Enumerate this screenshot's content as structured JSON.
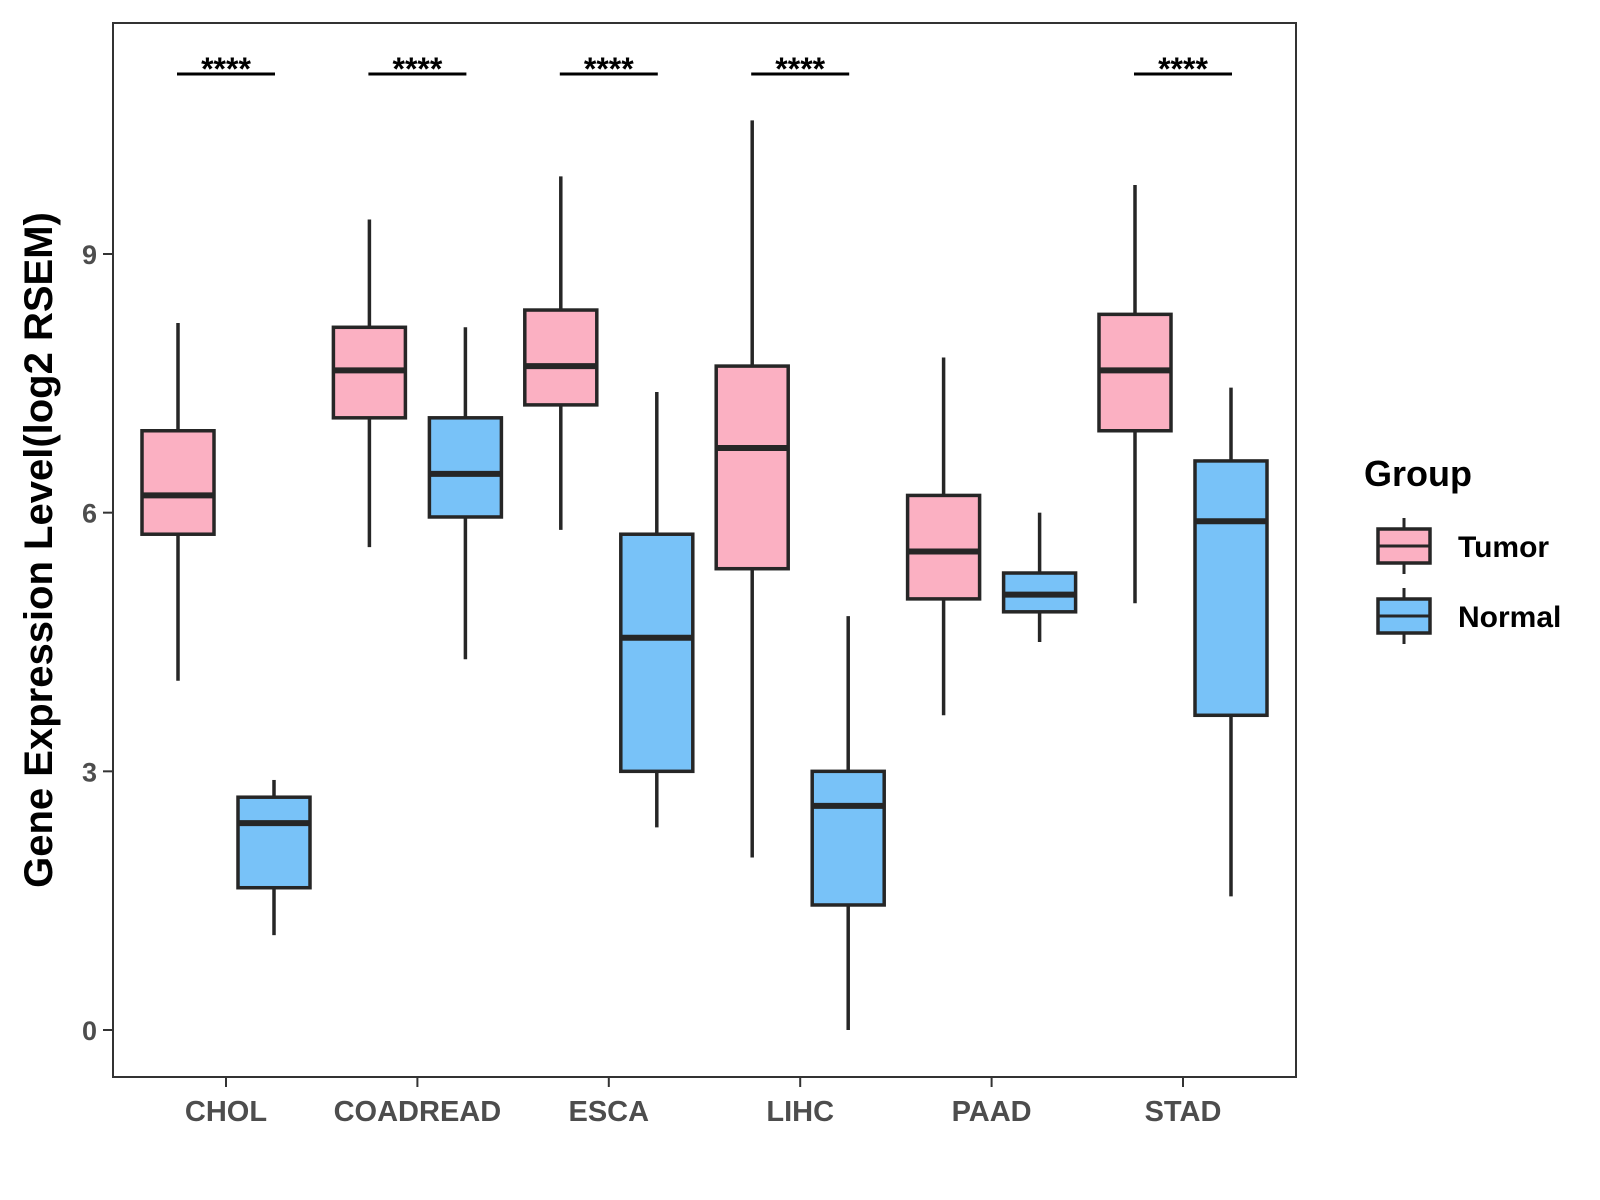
{
  "chart_data": {
    "type": "boxplot",
    "title": "",
    "xlabel": "",
    "ylabel": "Gene Expression Level(log2 RSEM)",
    "ylim": [
      -0.5,
      11.7
    ],
    "yticks": [
      0,
      3,
      6,
      9
    ],
    "grid": false,
    "legend": {
      "title": "Group",
      "placement": "right"
    },
    "categories": [
      "CHOL",
      "COADREAD",
      "ESCA",
      "LIHC",
      "PAAD",
      "STAD"
    ],
    "series": [
      {
        "name": "Tumor",
        "color": "#FBB0C2",
        "boxes": [
          {
            "min": 4.05,
            "q1": 5.75,
            "median": 6.2,
            "q3": 6.95,
            "max": 8.2
          },
          {
            "min": 5.6,
            "q1": 7.1,
            "median": 7.65,
            "q3": 8.15,
            "max": 9.4
          },
          {
            "min": 5.8,
            "q1": 7.25,
            "median": 7.7,
            "q3": 8.35,
            "max": 9.9
          },
          {
            "min": 2.0,
            "q1": 5.35,
            "median": 6.75,
            "q3": 7.7,
            "max": 10.55
          },
          {
            "min": 3.65,
            "q1": 5.0,
            "median": 5.55,
            "q3": 6.2,
            "max": 7.8
          },
          {
            "min": 4.95,
            "q1": 6.95,
            "median": 7.65,
            "q3": 8.3,
            "max": 9.8
          }
        ]
      },
      {
        "name": "Normal",
        "color": "#78C2F8",
        "boxes": [
          {
            "min": 1.1,
            "q1": 1.65,
            "median": 2.4,
            "q3": 2.7,
            "max": 2.9
          },
          {
            "min": 4.3,
            "q1": 5.95,
            "median": 6.45,
            "q3": 7.1,
            "max": 8.15
          },
          {
            "min": 2.35,
            "q1": 3.0,
            "median": 4.55,
            "q3": 5.75,
            "max": 7.4
          },
          {
            "min": 0.0,
            "q1": 1.45,
            "median": 2.6,
            "q3": 3.0,
            "max": 4.8
          },
          {
            "min": 4.5,
            "q1": 4.85,
            "median": 5.05,
            "q3": 5.3,
            "max": 6.0
          },
          {
            "min": 1.55,
            "q1": 3.65,
            "median": 5.9,
            "q3": 6.6,
            "max": 7.45
          }
        ]
      }
    ],
    "significance": [
      "****",
      "****",
      "****",
      "****",
      "",
      "****"
    ]
  },
  "colors": {
    "tumor_fill": "#FBB0C2",
    "normal_fill": "#78C2F8",
    "box_stroke": "#262626",
    "axis_text": "#4d4d4d"
  }
}
